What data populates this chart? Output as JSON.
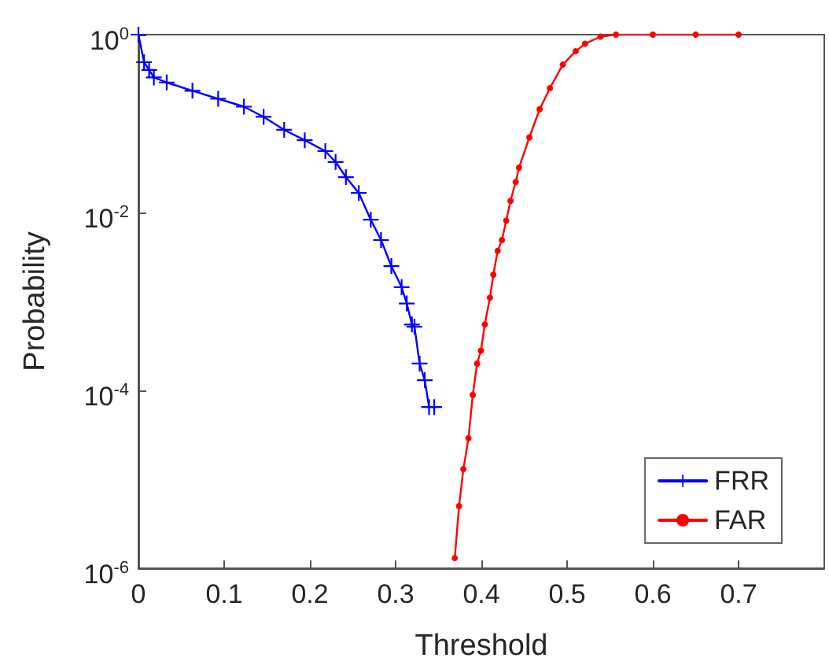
{
  "chart_data": {
    "type": "line",
    "xlabel": "Threshold",
    "ylabel": "Probability",
    "log": "y",
    "grid": false,
    "legend": "bottom right",
    "xlim": [
      0,
      0.8
    ],
    "xticks": [
      0,
      0.1,
      0.2,
      0.3,
      0.4,
      0.5,
      0.6,
      0.7
    ],
    "ylim": [
      1e-06,
      1
    ],
    "yticks": [
      {
        "value": 1,
        "label": "10$^{0}$"
      },
      {
        "value": 0.01,
        "label": "10$^{-2}$"
      },
      {
        "value": 0.0001,
        "label": "10$^{-4}$"
      },
      {
        "value": 1e-06,
        "label": "10$^{-6}$"
      }
    ],
    "series": [
      {
        "name": "FRR",
        "color": "#0000ff",
        "marker": "cross",
        "x": [
          0,
          0.0066,
          0.0125,
          0.018,
          0.033,
          0.063,
          0.093,
          0.123,
          0.146,
          0.17,
          0.194,
          0.218,
          0.23,
          0.242,
          0.257,
          0.271,
          0.283,
          0.295,
          0.307,
          0.313,
          0.319,
          0.322,
          0.328,
          0.334,
          0.339,
          0.345
        ],
        "values": [
          1,
          0.49,
          0.4,
          0.33,
          0.29,
          0.234,
          0.19,
          0.155,
          0.119,
          0.085,
          0.065,
          0.049,
          0.037,
          0.025,
          0.0166,
          0.0083,
          0.0049,
          0.0025,
          0.00145,
          0.00095,
          0.00055,
          0.00052,
          0.0002,
          0.00013,
          6.5e-05,
          6.5e-05
        ]
      },
      {
        "name": "FAR",
        "color": "#ff0000",
        "marker": "circle",
        "x": [
          0.369,
          0.374,
          0.379,
          0.385,
          0.39,
          0.395,
          0.3995,
          0.404,
          0.41,
          0.414,
          0.419,
          0.424,
          0.429,
          0.434,
          0.44,
          0.444,
          0.456,
          0.468,
          0.48,
          0.495,
          0.51,
          0.521,
          0.539,
          0.557,
          0.6,
          0.65,
          0.7
        ],
        "values": [
          1.3e-06,
          5e-06,
          1.3e-05,
          2.9e-05,
          8.9e-05,
          0.0002,
          0.00028,
          0.00055,
          0.0011,
          0.002,
          0.0037,
          0.0049,
          0.0081,
          0.0135,
          0.022,
          0.032,
          0.07,
          0.145,
          0.25,
          0.46,
          0.65,
          0.79,
          0.95,
          1,
          1,
          1,
          1
        ]
      }
    ]
  }
}
